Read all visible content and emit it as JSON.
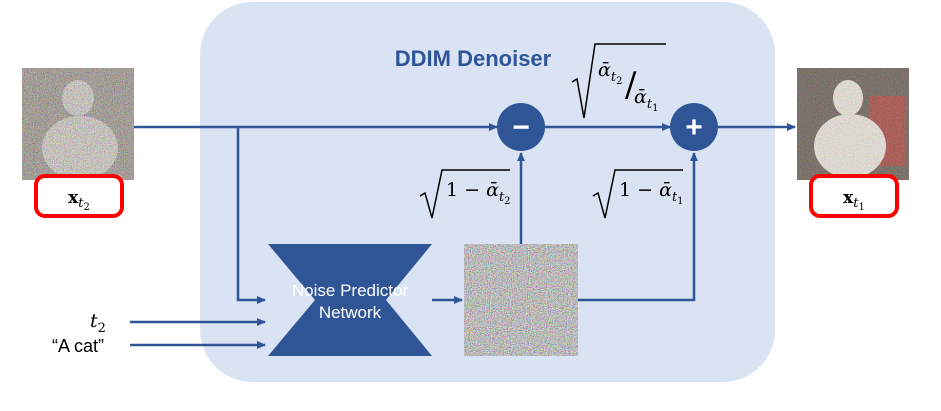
{
  "denoiser": {
    "title": "DDIM Denoiser",
    "minus_symbol": "−",
    "plus_symbol": "+"
  },
  "network": {
    "line1": "Noise Predictor",
    "line2": "Network"
  },
  "inputs": {
    "timestep": "t",
    "timestep_sub": "2",
    "prompt": "“A cat”"
  },
  "labels": {
    "x_in": "x",
    "x_in_sub_t": "t",
    "x_in_sub_idx": "2",
    "x_out": "x",
    "x_out_sub_t": "t",
    "x_out_sub_idx": "1"
  },
  "coefficients": {
    "sqrt_one_minus_t2": {
      "one_minus": "1 − ",
      "alpha": "ᾱ",
      "sub": "t",
      "idx": "2"
    },
    "sqrt_one_minus_t1": {
      "one_minus": "1 − ",
      "alpha": "ᾱ",
      "sub": "t",
      "idx": "1"
    },
    "ratio": {
      "alpha": "ᾱ",
      "num_sub": "t",
      "num_idx": "2",
      "den_sub": "t",
      "den_idx": "1",
      "slash": "/"
    }
  },
  "colors": {
    "panel_fill": "#dae3f3",
    "flow": "#2f5597",
    "node_fill": "#2f5597",
    "title": "#2f5597",
    "label_border": "#ff0000"
  }
}
